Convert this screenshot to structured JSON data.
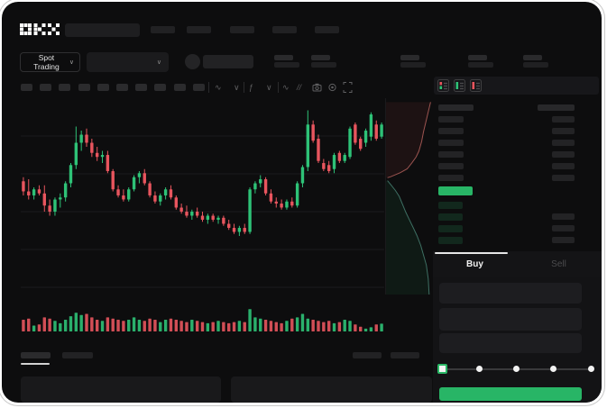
{
  "app": {
    "logo_text": "OKX"
  },
  "colors": {
    "up": "#2ec277",
    "down": "#e8555e",
    "accent": "#28b566",
    "depth_ask_line": "#9c5450",
    "depth_bid_line": "#3e6f63",
    "depth_ask_fill": "rgba(200,80,80,0.09)",
    "depth_bid_fill": "rgba(46,194,119,0.07)"
  },
  "top_bar": {
    "nav_slots": 5
  },
  "subheader": {
    "market_selector_label": "Spot Trading",
    "chevron": "∨",
    "stat_slots": 5
  },
  "chart_toolbar": {
    "timeframe_slots": 10,
    "icons": [
      "indicators-wave-icon",
      "chevron-down-icon",
      "fx-icon",
      "chevron-down-icon",
      "line-type-icon",
      "compare-icon",
      "camera-icon",
      "settings-icon",
      "fullscreen-icon"
    ]
  },
  "chart_data": {
    "type": "candlestick",
    "title": "",
    "xlabel": "",
    "ylabel": "",
    "grid_lines": 5,
    "price_scale": [
      0,
      100
    ],
    "candles": [
      [
        59,
        61,
        52,
        54
      ],
      [
        54,
        60,
        50,
        52
      ],
      [
        52,
        56,
        50,
        55
      ],
      [
        55,
        57,
        52,
        53
      ],
      [
        53,
        57,
        44,
        47
      ],
      [
        47,
        50,
        42,
        44
      ],
      [
        44,
        51,
        42,
        50
      ],
      [
        50,
        53,
        46,
        51
      ],
      [
        51,
        59,
        49,
        58
      ],
      [
        58,
        68,
        56,
        67
      ],
      [
        67,
        86,
        65,
        78
      ],
      [
        78,
        84,
        74,
        82
      ],
      [
        82,
        85,
        76,
        78
      ],
      [
        78,
        80,
        71,
        73
      ],
      [
        73,
        76,
        69,
        71
      ],
      [
        71,
        74,
        68,
        72
      ],
      [
        72,
        74,
        63,
        64
      ],
      [
        64,
        65,
        54,
        55
      ],
      [
        55,
        57,
        51,
        52
      ],
      [
        52,
        55,
        49,
        50
      ],
      [
        50,
        56,
        49,
        55
      ],
      [
        55,
        62,
        54,
        61
      ],
      [
        61,
        64,
        58,
        63
      ],
      [
        63,
        65,
        57,
        58
      ],
      [
        58,
        59,
        51,
        52
      ],
      [
        52,
        54,
        48,
        49
      ],
      [
        49,
        53,
        47,
        52
      ],
      [
        52,
        56,
        50,
        55
      ],
      [
        55,
        57,
        50,
        51
      ],
      [
        51,
        52,
        45,
        46
      ],
      [
        46,
        48,
        43,
        44
      ],
      [
        44,
        47,
        41,
        42
      ],
      [
        42,
        45,
        40,
        44
      ],
      [
        44,
        46,
        41,
        42
      ],
      [
        42,
        44,
        39,
        40
      ],
      [
        40,
        43,
        38,
        42
      ],
      [
        42,
        43,
        39,
        40
      ],
      [
        40,
        42,
        38,
        41
      ],
      [
        41,
        42,
        37,
        38
      ],
      [
        38,
        40,
        35,
        36
      ],
      [
        36,
        38,
        33,
        34
      ],
      [
        34,
        37,
        32,
        36
      ],
      [
        36,
        38,
        33,
        34
      ],
      [
        34,
        56,
        33,
        55
      ],
      [
        55,
        59,
        53,
        58
      ],
      [
        58,
        62,
        56,
        60
      ],
      [
        60,
        61,
        52,
        53
      ],
      [
        53,
        55,
        48,
        49
      ],
      [
        49,
        51,
        46,
        48
      ],
      [
        48,
        50,
        45,
        46
      ],
      [
        46,
        50,
        45,
        49
      ],
      [
        49,
        51,
        46,
        47
      ],
      [
        47,
        59,
        46,
        58
      ],
      [
        58,
        67,
        56,
        66
      ],
      [
        66,
        94,
        64,
        87
      ],
      [
        87,
        89,
        78,
        79
      ],
      [
        80,
        82,
        68,
        69
      ],
      [
        68,
        70,
        64,
        65
      ],
      [
        67,
        69,
        63,
        64
      ],
      [
        65,
        73,
        63,
        72
      ],
      [
        73,
        74,
        68,
        69
      ],
      [
        69,
        73,
        68,
        72
      ],
      [
        71,
        86,
        70,
        85
      ],
      [
        87,
        88,
        77,
        78
      ],
      [
        80,
        81,
        74,
        75
      ],
      [
        78,
        85,
        76,
        84
      ],
      [
        81,
        93,
        79,
        92
      ],
      [
        87,
        89,
        79,
        80
      ],
      [
        81,
        88,
        80,
        87
      ]
    ],
    "volumes": [
      0.5,
      0.55,
      0.25,
      0.3,
      0.6,
      0.55,
      0.45,
      0.35,
      0.5,
      0.65,
      0.8,
      0.7,
      0.75,
      0.6,
      0.5,
      0.45,
      0.6,
      0.55,
      0.5,
      0.45,
      0.5,
      0.6,
      0.5,
      0.45,
      0.55,
      0.5,
      0.4,
      0.5,
      0.55,
      0.5,
      0.45,
      0.4,
      0.5,
      0.45,
      0.4,
      0.35,
      0.4,
      0.45,
      0.4,
      0.35,
      0.4,
      0.45,
      0.4,
      0.95,
      0.6,
      0.55,
      0.5,
      0.45,
      0.4,
      0.35,
      0.45,
      0.55,
      0.6,
      0.75,
      0.55,
      0.5,
      0.45,
      0.4,
      0.45,
      0.35,
      0.4,
      0.5,
      0.45,
      0.3,
      0.2,
      0.12,
      0.18,
      0.3,
      0.33
    ],
    "depth": {
      "asks": [
        [
          0.95,
          0.02
        ],
        [
          0.9,
          0.07
        ],
        [
          0.85,
          0.12
        ],
        [
          0.8,
          0.17
        ],
        [
          0.76,
          0.22
        ],
        [
          0.7,
          0.27
        ],
        [
          0.64,
          0.3
        ],
        [
          0.55,
          0.33
        ],
        [
          0.45,
          0.36
        ],
        [
          0.3,
          0.38
        ],
        [
          0.1,
          0.4
        ],
        [
          0.03,
          0.405
        ]
      ],
      "bids": [
        [
          0.03,
          0.42
        ],
        [
          0.1,
          0.44
        ],
        [
          0.2,
          0.47
        ],
        [
          0.28,
          0.5
        ],
        [
          0.35,
          0.54
        ],
        [
          0.42,
          0.58
        ],
        [
          0.5,
          0.62
        ],
        [
          0.58,
          0.66
        ],
        [
          0.66,
          0.7
        ],
        [
          0.74,
          0.75
        ],
        [
          0.8,
          0.8
        ],
        [
          0.86,
          0.85
        ],
        [
          0.9,
          0.92
        ],
        [
          0.92,
          1.0
        ]
      ]
    }
  },
  "order_book": {
    "view_mode_icons": [
      "book-both-icon",
      "book-bids-icon",
      "book-asks-icon"
    ],
    "ask_rows": 6,
    "bid_rows": 4,
    "has_header": true
  },
  "trade_panel": {
    "tabs": [
      {
        "label": "Buy",
        "active": true
      },
      {
        "label": "Sell",
        "active": false
      }
    ],
    "input_slots": 3,
    "slider": {
      "stops": 5,
      "value_index": 0
    }
  },
  "bottom_section": {
    "tab_slots": 2,
    "active_tab_index": 0,
    "right_slots": 2,
    "panel_slots": 2
  }
}
